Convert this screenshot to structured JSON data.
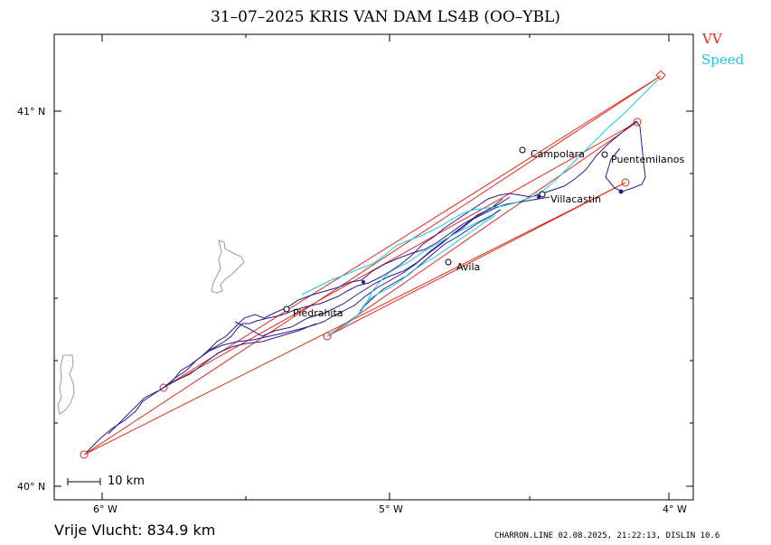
{
  "title": "31–07–2025    KRIS VAN DAM    LS4B (OO–YBL)",
  "legend": [
    {
      "label": "VV",
      "color": "#e02a1a"
    },
    {
      "label": "Speed",
      "color": "#22c6e2"
    }
  ],
  "axes": {
    "lat_ticks": [
      {
        "value": 41,
        "label": "41° N"
      },
      {
        "value": 40,
        "label": "40° N"
      }
    ],
    "lon_ticks": [
      {
        "value": -6,
        "label": "6° W"
      },
      {
        "value": -5,
        "label": "5° W"
      },
      {
        "value": -4,
        "label": "4° W"
      }
    ]
  },
  "places": [
    {
      "name": "Campolara",
      "lon": -4.46,
      "lat": 40.87
    },
    {
      "name": "Puentemilanos",
      "lon": -4.18,
      "lat": 40.86
    },
    {
      "name": "Villacastin",
      "lon": -4.42,
      "lat": 40.78
    },
    {
      "name": "Avila",
      "lon": -4.79,
      "lat": 40.6
    },
    {
      "name": "Piedrahita",
      "lon": -5.37,
      "lat": 40.47
    }
  ],
  "scale_bar": {
    "label": "10 km"
  },
  "distance": "Vrije Vlucht:  834.9 km",
  "footer": "CHARRON.LINE 02.08.2025, 21:22:13, DISLIN 10.6",
  "colors": {
    "track": "#2a1a8c",
    "vv": "#e02a1a",
    "speed": "#22c6e2",
    "terrain": "#9a9a9a"
  }
}
